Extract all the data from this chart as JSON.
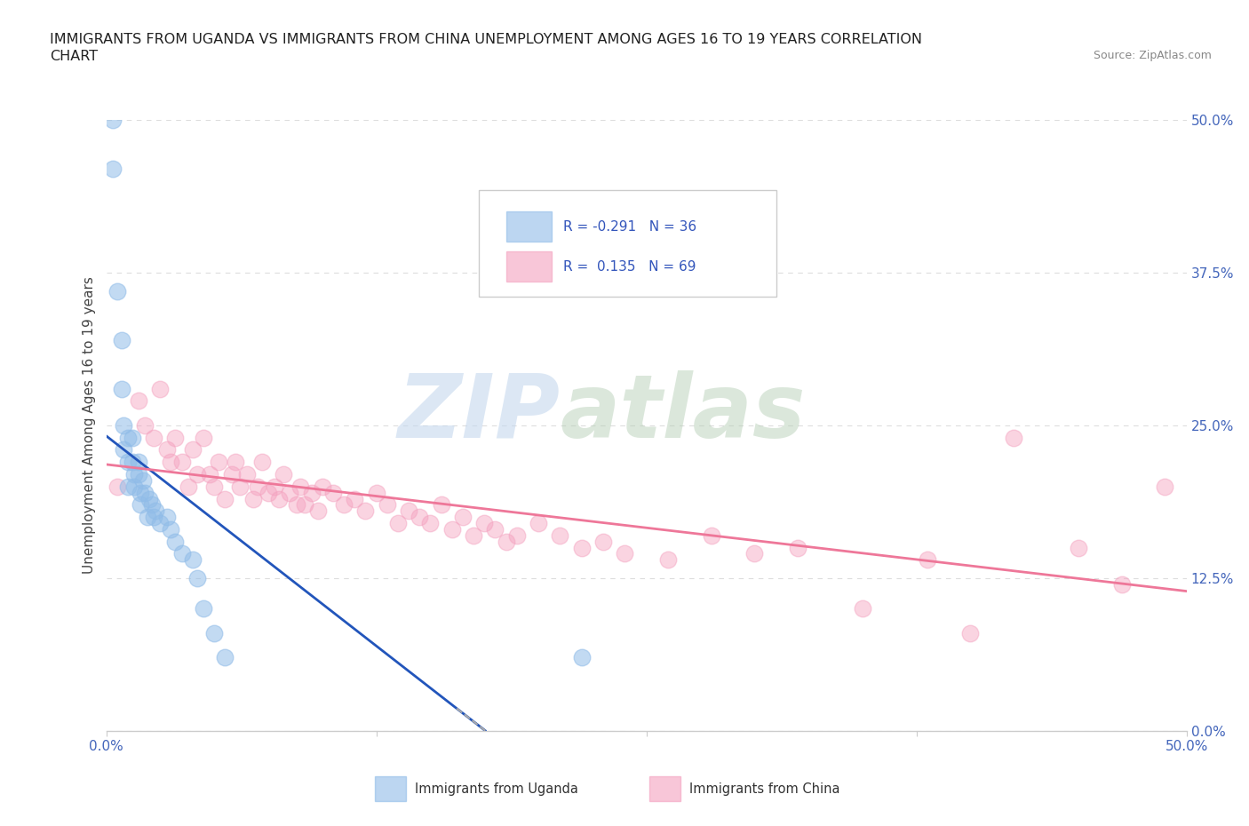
{
  "title_line1": "IMMIGRANTS FROM UGANDA VS IMMIGRANTS FROM CHINA UNEMPLOYMENT AMONG AGES 16 TO 19 YEARS CORRELATION",
  "title_line2": "CHART",
  "source": "Source: ZipAtlas.com",
  "ylabel": "Unemployment Among Ages 16 to 19 years",
  "xmin": 0.0,
  "xmax": 0.5,
  "ymin": 0.0,
  "ymax": 0.5,
  "yticks": [
    0.0,
    0.125,
    0.25,
    0.375,
    0.5
  ],
  "ytick_labels_right": [
    "0.0%",
    "12.5%",
    "25.0%",
    "37.5%",
    "50.0%"
  ],
  "xtick_labels_ends": [
    "0.0%",
    "50.0%"
  ],
  "legend_label_uganda": "Immigrants from Uganda",
  "legend_label_china": "Immigrants from China",
  "watermark_zip": "ZIP",
  "watermark_atlas": "atlas",
  "uganda_color": "#90bce8",
  "china_color": "#f4a0be",
  "uganda_trend_color": "#2255bb",
  "china_trend_color": "#ee7799",
  "background_color": "#ffffff",
  "grid_color": "#dddddd",
  "uganda_x": [
    0.003,
    0.003,
    0.005,
    0.007,
    0.007,
    0.008,
    0.008,
    0.01,
    0.01,
    0.01,
    0.012,
    0.012,
    0.013,
    0.013,
    0.015,
    0.015,
    0.016,
    0.016,
    0.017,
    0.018,
    0.019,
    0.02,
    0.021,
    0.022,
    0.023,
    0.025,
    0.028,
    0.03,
    0.032,
    0.035,
    0.04,
    0.042,
    0.045,
    0.05,
    0.055,
    0.22
  ],
  "uganda_y": [
    0.5,
    0.46,
    0.36,
    0.32,
    0.28,
    0.25,
    0.23,
    0.24,
    0.22,
    0.2,
    0.24,
    0.22,
    0.21,
    0.2,
    0.22,
    0.21,
    0.195,
    0.185,
    0.205,
    0.195,
    0.175,
    0.19,
    0.185,
    0.175,
    0.18,
    0.17,
    0.175,
    0.165,
    0.155,
    0.145,
    0.14,
    0.125,
    0.1,
    0.08,
    0.06,
    0.06
  ],
  "china_x": [
    0.005,
    0.015,
    0.018,
    0.022,
    0.025,
    0.028,
    0.03,
    0.032,
    0.035,
    0.038,
    0.04,
    0.042,
    0.045,
    0.048,
    0.05,
    0.052,
    0.055,
    0.058,
    0.06,
    0.062,
    0.065,
    0.068,
    0.07,
    0.072,
    0.075,
    0.078,
    0.08,
    0.082,
    0.085,
    0.088,
    0.09,
    0.092,
    0.095,
    0.098,
    0.1,
    0.105,
    0.11,
    0.115,
    0.12,
    0.125,
    0.13,
    0.135,
    0.14,
    0.145,
    0.15,
    0.155,
    0.16,
    0.165,
    0.17,
    0.175,
    0.18,
    0.185,
    0.19,
    0.2,
    0.21,
    0.22,
    0.23,
    0.24,
    0.26,
    0.28,
    0.3,
    0.32,
    0.35,
    0.38,
    0.4,
    0.42,
    0.45,
    0.47,
    0.49
  ],
  "china_y": [
    0.2,
    0.27,
    0.25,
    0.24,
    0.28,
    0.23,
    0.22,
    0.24,
    0.22,
    0.2,
    0.23,
    0.21,
    0.24,
    0.21,
    0.2,
    0.22,
    0.19,
    0.21,
    0.22,
    0.2,
    0.21,
    0.19,
    0.2,
    0.22,
    0.195,
    0.2,
    0.19,
    0.21,
    0.195,
    0.185,
    0.2,
    0.185,
    0.195,
    0.18,
    0.2,
    0.195,
    0.185,
    0.19,
    0.18,
    0.195,
    0.185,
    0.17,
    0.18,
    0.175,
    0.17,
    0.185,
    0.165,
    0.175,
    0.16,
    0.17,
    0.165,
    0.155,
    0.16,
    0.17,
    0.16,
    0.15,
    0.155,
    0.145,
    0.14,
    0.16,
    0.145,
    0.15,
    0.1,
    0.14,
    0.08,
    0.24,
    0.15,
    0.12,
    0.2
  ]
}
